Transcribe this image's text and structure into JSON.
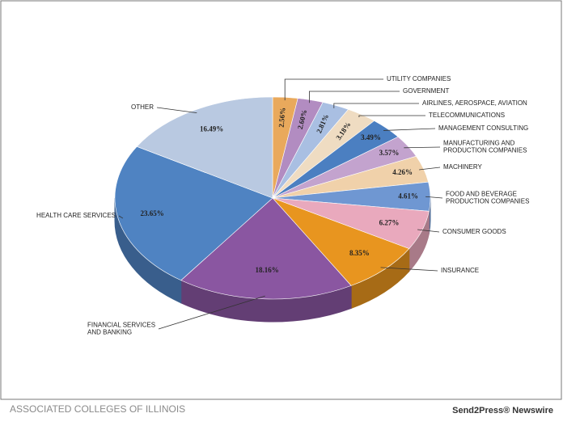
{
  "chart_data": {
    "type": "pie",
    "categories": [
      "UTILITY COMPANIES",
      "GOVERNMENT",
      "AIRLINES, AEROSPACE, AVIATION",
      "TELECOMMUNICATIONS",
      "MANAGEMENT CONSULTING",
      "MANUFACTURING AND\nPRODUCTION COMPANIES",
      "MACHINERY",
      "FOOD AND BEVERAGE\nPRODUCTION COMPANIES",
      "CONSUMER GOODS",
      "INSURANCE",
      "FINANCIAL SERVICES\nAND BANKING",
      "HEALTH CARE SERVICES",
      "OTHER"
    ],
    "values": [
      2.56,
      2.6,
      2.81,
      3.18,
      3.49,
      3.57,
      4.26,
      4.61,
      6.27,
      8.35,
      18.16,
      23.65,
      16.49
    ],
    "value_labels": [
      "2.56%",
      "2.60%",
      "2.81%",
      "3.18%",
      "3.49%",
      "3.57%",
      "4.26%",
      "4.61%",
      "6.27%",
      "8.35%",
      "18.16%",
      "23.65%",
      "16.49%"
    ],
    "colors": [
      "#e9a95c",
      "#b28cc1",
      "#a9bfe2",
      "#efdcc2",
      "#4b7fc1",
      "#c3a3ce",
      "#f0d1aa",
      "#6f97d2",
      "#e9a9bd",
      "#e8951f",
      "#8a56a1",
      "#4f83c2",
      "#b9c9e1"
    ]
  },
  "footer": {
    "left": "ASSOCIATED COLLEGES OF ILLINOIS",
    "right": "Send2Press® Newswire"
  }
}
